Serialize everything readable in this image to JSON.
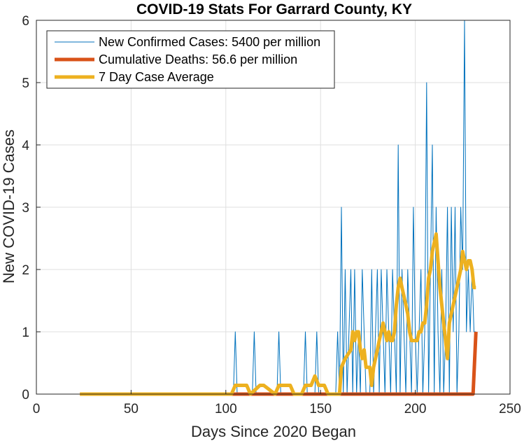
{
  "chart_data": {
    "type": "line",
    "title": "COVID-19 Stats For Garrard County, KY",
    "xlabel": "Days Since 2020 Began",
    "ylabel": "New COVID-19 Cases",
    "xlim": [
      0,
      250
    ],
    "ylim": [
      0,
      6
    ],
    "xticks": [
      0,
      50,
      100,
      150,
      200,
      250
    ],
    "yticks": [
      0,
      1,
      2,
      3,
      4,
      5,
      6
    ],
    "xtick_labels": [
      "0",
      "50",
      "100",
      "150",
      "200",
      "250"
    ],
    "ytick_labels": [
      "0",
      "1",
      "2",
      "3",
      "4",
      "5",
      "6"
    ],
    "grid": true,
    "legend_position": "top-left",
    "series": [
      {
        "name": "New Confirmed Cases: 5400 per million",
        "color": "#0072BD",
        "style": "thin",
        "x": [
          23,
          104,
          105,
          106,
          114,
          115,
          116,
          127,
          128,
          129,
          141,
          142,
          143,
          147,
          148,
          149,
          158,
          159,
          160,
          161,
          162,
          163,
          164,
          165,
          166,
          167,
          168,
          169,
          170,
          171,
          172,
          173,
          174,
          175,
          176,
          177,
          178,
          179,
          180,
          181,
          182,
          183,
          184,
          185,
          186,
          187,
          188,
          189,
          190,
          191,
          192,
          193,
          194,
          195,
          196,
          197,
          198,
          199,
          200,
          201,
          202,
          203,
          204,
          205,
          206,
          207,
          208,
          209,
          210,
          211,
          212,
          213,
          214,
          215,
          216,
          217,
          218,
          219,
          220,
          221,
          222,
          223,
          224,
          225,
          226,
          227,
          228,
          229,
          230,
          231,
          232
        ],
        "y": [
          0,
          0,
          1,
          0,
          0,
          1,
          0,
          0,
          1,
          0,
          0,
          1,
          0,
          0,
          1,
          0,
          0,
          1,
          0,
          3,
          0,
          2,
          0,
          1,
          2,
          0,
          2,
          0,
          1,
          0,
          2,
          1,
          0,
          0,
          0,
          2,
          0,
          1,
          2,
          0,
          2,
          1,
          0,
          2,
          1,
          0,
          2,
          1,
          0,
          4,
          0,
          2,
          1,
          0,
          2,
          1,
          0,
          3,
          1,
          0,
          1,
          2,
          0,
          1,
          5,
          0,
          2,
          4,
          0,
          3,
          1,
          0,
          2,
          0,
          1,
          3,
          0,
          3,
          1,
          3,
          0,
          1,
          3,
          2,
          6,
          1,
          2,
          1,
          2,
          1,
          1
        ]
      },
      {
        "name": "Cumulative Deaths: 56.6 per million",
        "color": "#D95319",
        "style": "thick",
        "x": [
          23,
          230.5,
          232
        ],
        "y": [
          0,
          0,
          1
        ]
      },
      {
        "name": "7 Day Case Average",
        "color": "#EDB120",
        "style": "thick",
        "x": [
          23,
          103,
          105,
          111,
          113,
          118,
          120,
          126,
          128,
          134,
          136,
          140,
          142,
          145,
          147,
          149,
          150,
          152,
          154,
          158,
          160,
          161,
          163,
          166,
          167,
          168,
          169,
          170,
          171,
          172,
          173,
          174,
          175,
          176,
          177,
          178,
          179,
          180,
          181,
          182,
          183,
          184,
          185,
          186,
          187,
          188,
          189,
          190,
          191,
          192,
          193,
          194,
          195,
          196,
          197,
          198,
          199,
          200,
          201,
          202,
          203,
          204,
          205,
          206,
          207,
          208,
          209,
          210,
          211,
          212,
          213,
          214,
          215,
          216,
          217,
          218,
          219,
          220,
          221,
          222,
          223,
          224,
          225,
          226,
          227,
          228,
          229,
          230,
          231,
          232
        ],
        "y": [
          0,
          0,
          0.14,
          0.14,
          0,
          0.14,
          0.14,
          0,
          0.14,
          0.14,
          0,
          0,
          0.14,
          0.14,
          0.29,
          0.14,
          0.14,
          0.14,
          0,
          0,
          0,
          0.43,
          0.57,
          0.71,
          1.0,
          0.86,
          1.0,
          1.0,
          0.71,
          0.57,
          0.71,
          0.43,
          0.43,
          0.43,
          0.14,
          0.43,
          0.57,
          0.71,
          0.86,
          1.0,
          1.14,
          1.0,
          0.86,
          1.0,
          0.86,
          0.86,
          1.0,
          1.43,
          1.71,
          1.86,
          1.71,
          1.57,
          1.43,
          1.29,
          1.0,
          0.86,
          0.86,
          0.86,
          0.86,
          1.0,
          1.0,
          1.14,
          1.14,
          1.43,
          1.86,
          2.0,
          2.29,
          2.43,
          2.57,
          2.14,
          1.71,
          1.43,
          1.14,
          0.86,
          0.57,
          1.14,
          1.29,
          1.43,
          1.57,
          1.71,
          1.86,
          2.0,
          2.29,
          2.14,
          2.0,
          2.14,
          2.14,
          2.0,
          1.71,
          1.71
        ]
      }
    ]
  }
}
